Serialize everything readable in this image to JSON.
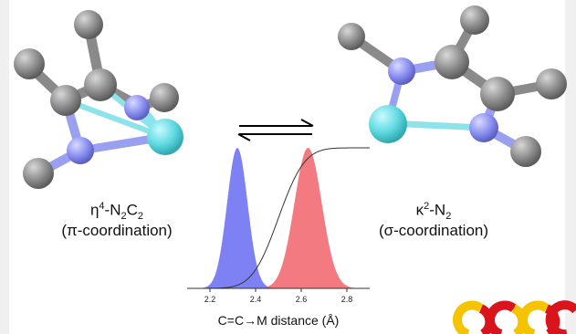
{
  "left_label": {
    "line1_parts": [
      "η",
      "4",
      "-N",
      "2",
      "C",
      "2"
    ],
    "line2": "(π-coordination)"
  },
  "right_label": {
    "line1_parts": [
      "κ",
      "2",
      "-N",
      "2"
    ],
    "line2": "(σ-coordination)"
  },
  "equilibrium_symbol": "⇌",
  "chart_data": {
    "type": "area",
    "xlabel": "C=C→M distance (Å)",
    "xlim": [
      2.1,
      2.9
    ],
    "xticks": [
      "2.2",
      "2.4",
      "2.6",
      "2.8"
    ],
    "series": [
      {
        "color": "#5a5ef0",
        "shape": "gaussian",
        "center": 2.32,
        "sigma": 0.045,
        "peak": 1.0
      },
      {
        "color": "#f0555c",
        "shape": "gaussian",
        "center": 2.63,
        "sigma": 0.06,
        "peak": 1.0
      },
      {
        "color": "#333333",
        "shape": "cumulative",
        "center": 2.5,
        "sigma": 0.09,
        "peak": 1.0
      }
    ]
  },
  "colors": {
    "carbon": "#8f8f8f",
    "nitrogen": "#8a8ff0",
    "metal": "#5fd9e0",
    "logo_yellow": "#f4c400",
    "logo_red": "#d9141c"
  }
}
